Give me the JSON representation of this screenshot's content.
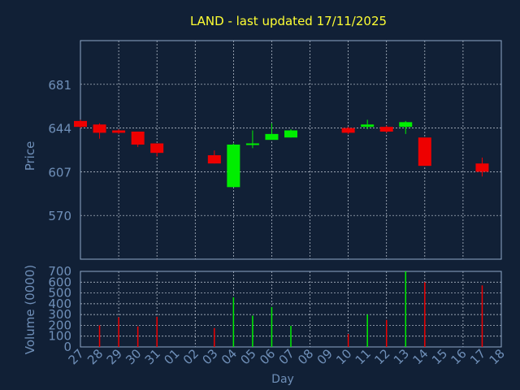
{
  "title": "LAND - last updated 17/11/2025",
  "colors": {
    "background": "#112036",
    "title": "#FFFF33",
    "axis_text": "#6F8FB8",
    "frame": "#8FA8C8",
    "grid": "#C8D0DC",
    "up": "#00EE00",
    "down": "#EE0000"
  },
  "chart_data": [
    {
      "type": "candlestick",
      "title": "LAND - last updated 17/11/2025",
      "ylabel": "Price",
      "ylim": [
        533,
        718
      ],
      "yticks": [
        570,
        607,
        644,
        681
      ],
      "grid": true,
      "x": [
        "27",
        "28",
        "29",
        "30",
        "31",
        "01",
        "02",
        "03",
        "04",
        "05",
        "06",
        "07",
        "08",
        "09",
        "10",
        "11",
        "12",
        "13",
        "14",
        "15",
        "16",
        "17",
        "18"
      ],
      "candles": [
        {
          "day": "27",
          "open": 650,
          "close": 645,
          "high": 651,
          "low": 644
        },
        {
          "day": "28",
          "open": 647,
          "close": 640,
          "high": 648,
          "low": 635
        },
        {
          "day": "29",
          "open": 642,
          "close": 640,
          "high": 643,
          "low": 639
        },
        {
          "day": "30",
          "open": 641,
          "close": 630,
          "high": 641,
          "low": 628
        },
        {
          "day": "31",
          "open": 631,
          "close": 623,
          "high": 631,
          "low": 620
        },
        {
          "day": "03",
          "open": 621,
          "close": 614,
          "high": 625,
          "low": 614
        },
        {
          "day": "04",
          "open": 594,
          "close": 630,
          "high": 631,
          "low": 594
        },
        {
          "day": "05",
          "open": 630,
          "close": 631,
          "high": 642,
          "low": 627
        },
        {
          "day": "06",
          "open": 634,
          "close": 639,
          "high": 648,
          "low": 634
        },
        {
          "day": "07",
          "open": 636,
          "close": 642,
          "high": 643,
          "low": 636
        },
        {
          "day": "10",
          "open": 644,
          "close": 640,
          "high": 645,
          "low": 639
        },
        {
          "day": "11",
          "open": 645,
          "close": 647,
          "high": 651,
          "low": 643
        },
        {
          "day": "12",
          "open": 645,
          "close": 641,
          "high": 646,
          "low": 640
        },
        {
          "day": "13",
          "open": 645,
          "close": 649,
          "high": 650,
          "low": 639
        },
        {
          "day": "14",
          "open": 636,
          "close": 612,
          "high": 636,
          "low": 612
        },
        {
          "day": "17",
          "open": 614,
          "close": 607,
          "high": 619,
          "low": 603
        }
      ]
    },
    {
      "type": "bar",
      "xlabel": "Day",
      "ylabel": "Volume (0000)",
      "ylim": [
        0,
        700
      ],
      "yticks": [
        0,
        100,
        200,
        300,
        400,
        500,
        600,
        700
      ],
      "grid": true,
      "x": [
        "27",
        "28",
        "29",
        "30",
        "31",
        "01",
        "02",
        "03",
        "04",
        "05",
        "06",
        "07",
        "08",
        "09",
        "10",
        "11",
        "12",
        "13",
        "14",
        "15",
        "16",
        "17",
        "18"
      ],
      "bars": [
        {
          "day": "28",
          "value": 200,
          "direction": "down"
        },
        {
          "day": "29",
          "value": 275,
          "direction": "down"
        },
        {
          "day": "30",
          "value": 190,
          "direction": "down"
        },
        {
          "day": "31",
          "value": 280,
          "direction": "down"
        },
        {
          "day": "03",
          "value": 175,
          "direction": "down"
        },
        {
          "day": "04",
          "value": 460,
          "direction": "up"
        },
        {
          "day": "05",
          "value": 290,
          "direction": "up"
        },
        {
          "day": "06",
          "value": 370,
          "direction": "up"
        },
        {
          "day": "07",
          "value": 195,
          "direction": "up"
        },
        {
          "day": "10",
          "value": 120,
          "direction": "down"
        },
        {
          "day": "11",
          "value": 300,
          "direction": "up"
        },
        {
          "day": "12",
          "value": 250,
          "direction": "down"
        },
        {
          "day": "13",
          "value": 700,
          "direction": "up"
        },
        {
          "day": "14",
          "value": 600,
          "direction": "down"
        },
        {
          "day": "17",
          "value": 570,
          "direction": "down"
        }
      ]
    }
  ]
}
